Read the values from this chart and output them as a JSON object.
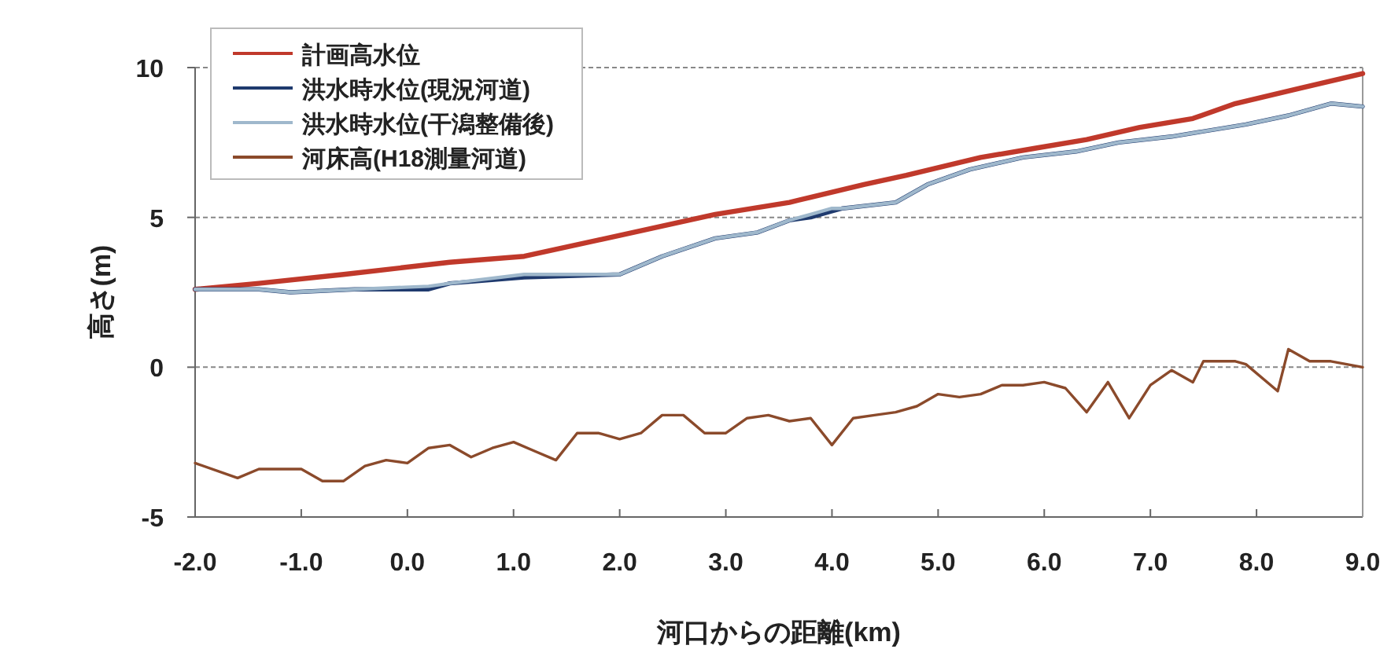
{
  "chart_data": {
    "type": "line",
    "xlabel": "河口からの距離(km)",
    "ylabel": "高さ(m)",
    "xlim": [
      -2,
      9
    ],
    "ylim": [
      -5,
      10
    ],
    "xticks": [
      {
        "value": -2,
        "label": "-2.0"
      },
      {
        "value": -1,
        "label": "-1.0"
      },
      {
        "value": 0,
        "label": "0.0"
      },
      {
        "value": 1,
        "label": "1.0"
      },
      {
        "value": 2,
        "label": "2.0"
      },
      {
        "value": 3,
        "label": "3.0"
      },
      {
        "value": 4,
        "label": "4.0"
      },
      {
        "value": 5,
        "label": "5.0"
      },
      {
        "value": 6,
        "label": "6.0"
      },
      {
        "value": 7,
        "label": "7.0"
      },
      {
        "value": 8,
        "label": "8.0"
      },
      {
        "value": 9,
        "label": "9.0"
      }
    ],
    "yticks": [
      -5,
      0,
      5,
      10
    ],
    "grid": "y",
    "legend": "top left",
    "marker": "none",
    "line_style": "solid",
    "series": [
      {
        "name": "計画高水位",
        "color": "#c0392b",
        "x": [
          -2.0,
          -1.4,
          -0.6,
          0.4,
          1.1,
          2.0,
          2.9,
          3.6,
          4.3,
          4.7,
          5.4,
          5.9,
          6.4,
          6.9,
          7.4,
          7.8,
          8.4,
          9.0
        ],
        "values": [
          2.6,
          2.8,
          3.1,
          3.5,
          3.7,
          4.4,
          5.1,
          5.5,
          6.1,
          6.4,
          7.0,
          7.3,
          7.6,
          8.0,
          8.3,
          8.8,
          9.3,
          9.8
        ]
      },
      {
        "name": "洪水時水位(現況河道)",
        "color": "#1f3a6e",
        "x": [
          -2.0,
          -1.4,
          -1.1,
          -0.5,
          0.2,
          0.4,
          1.1,
          2.0,
          2.4,
          2.9,
          3.3,
          3.6,
          3.8,
          4.0,
          4.1,
          4.6,
          4.9,
          5.3,
          5.8,
          6.3,
          6.7,
          7.2,
          7.9,
          8.3,
          8.7,
          9.0
        ],
        "values": [
          2.6,
          2.6,
          2.5,
          2.6,
          2.6,
          2.8,
          3.0,
          3.1,
          3.7,
          4.3,
          4.5,
          4.9,
          5.0,
          5.2,
          5.3,
          5.5,
          6.1,
          6.6,
          7.0,
          7.2,
          7.5,
          7.7,
          8.1,
          8.4,
          8.8,
          8.7
        ]
      },
      {
        "name": "洪水時水位(干潟整備後)",
        "color": "#9fb8cc",
        "x": [
          -2.0,
          -1.4,
          -1.1,
          -0.5,
          0.2,
          0.4,
          1.1,
          2.0,
          2.4,
          2.9,
          3.3,
          3.6,
          3.8,
          4.0,
          4.1,
          4.6,
          4.9,
          5.3,
          5.8,
          6.3,
          6.7,
          7.2,
          7.9,
          8.3,
          8.7,
          9.0
        ],
        "values": [
          2.6,
          2.6,
          2.5,
          2.6,
          2.7,
          2.8,
          3.1,
          3.1,
          3.7,
          4.3,
          4.5,
          4.9,
          5.1,
          5.3,
          5.3,
          5.5,
          6.1,
          6.6,
          7.0,
          7.2,
          7.5,
          7.7,
          8.1,
          8.4,
          8.8,
          8.7
        ]
      },
      {
        "name": "河床高(H18測量河道)",
        "color": "#8b4a2b",
        "x": [
          -2.0,
          -1.6,
          -1.4,
          -1.2,
          -1.0,
          -0.8,
          -0.6,
          -0.4,
          -0.2,
          0.0,
          0.2,
          0.4,
          0.6,
          0.8,
          1.0,
          1.2,
          1.4,
          1.6,
          1.8,
          2.0,
          2.2,
          2.4,
          2.6,
          2.8,
          3.0,
          3.2,
          3.4,
          3.6,
          3.8,
          4.0,
          4.2,
          4.4,
          4.6,
          4.8,
          5.0,
          5.2,
          5.4,
          5.6,
          5.8,
          6.0,
          6.2,
          6.4,
          6.6,
          6.8,
          7.0,
          7.2,
          7.4,
          7.5,
          7.8,
          7.9,
          8.2,
          8.3,
          8.5,
          8.7,
          9.0
        ],
        "values": [
          -3.2,
          -3.7,
          -3.4,
          -3.4,
          -3.4,
          -3.8,
          -3.8,
          -3.3,
          -3.1,
          -3.2,
          -2.7,
          -2.6,
          -3.0,
          -2.7,
          -2.5,
          -2.8,
          -3.1,
          -2.2,
          -2.2,
          -2.4,
          -2.2,
          -1.6,
          -1.6,
          -2.2,
          -2.2,
          -1.7,
          -1.6,
          -1.8,
          -1.7,
          -2.6,
          -1.7,
          -1.6,
          -1.5,
          -1.3,
          -0.9,
          -1.0,
          -0.9,
          -0.6,
          -0.6,
          -0.5,
          -0.7,
          -1.5,
          -0.5,
          -1.7,
          -0.6,
          -0.1,
          -0.5,
          0.2,
          0.2,
          0.1,
          -0.8,
          0.6,
          0.2,
          0.2,
          0.0
        ]
      }
    ]
  }
}
